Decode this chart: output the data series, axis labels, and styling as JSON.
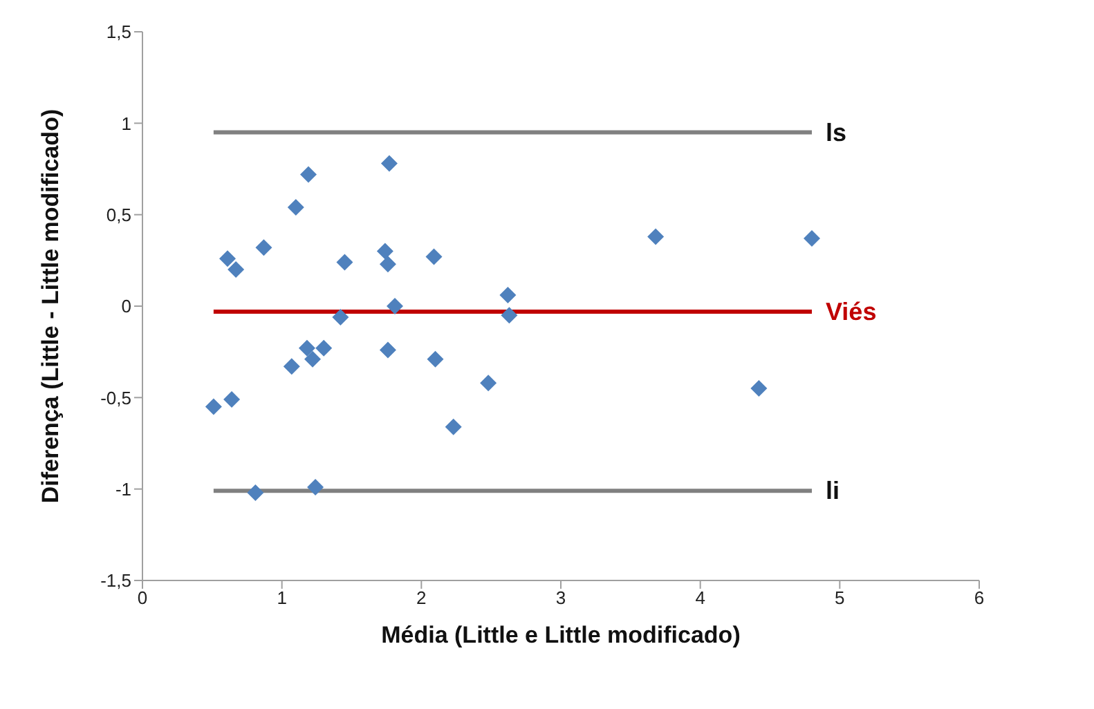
{
  "chart_data": {
    "type": "scatter",
    "xlabel": "Média (Little e Little modificado)",
    "ylabel": "Diferença (Little - Little modificado)",
    "x": [
      0.61,
      0.67,
      0.87,
      1.1,
      1.19,
      1.77,
      1.74,
      1.76,
      1.45,
      2.09,
      1.81,
      1.42,
      0.51,
      0.64,
      0.81,
      1.24,
      1.07,
      1.18,
      1.3,
      1.22,
      1.76,
      2.1,
      2.62,
      2.63,
      2.48,
      2.23,
      3.68,
      4.8,
      4.42
    ],
    "series": [
      {
        "color": "#4f81bd",
        "values": [
          0.26,
          0.2,
          0.32,
          0.54,
          0.72,
          0.78,
          0.3,
          0.23,
          0.24,
          0.27,
          0.0,
          -0.06,
          -0.55,
          -0.51,
          -1.02,
          -0.99,
          -0.33,
          -0.23,
          -0.23,
          -0.29,
          -0.24,
          -0.29,
          0.06,
          -0.05,
          -0.42,
          -0.66,
          0.38,
          0.37,
          -0.45
        ]
      }
    ],
    "marker": "diamond",
    "xlim": [
      0,
      6
    ],
    "xticks": [
      0,
      1,
      2,
      3,
      4,
      5,
      6
    ],
    "ylim": [
      -1.5,
      1.5
    ],
    "yticks": [
      {
        "value": -1.5,
        "label": "-1,5"
      },
      {
        "value": -1,
        "label": "-1"
      },
      {
        "value": -0.5,
        "label": "-0,5"
      },
      {
        "value": 0,
        "label": "0"
      },
      {
        "value": 0.5,
        "label": "0,5"
      },
      {
        "value": 1,
        "label": "1"
      },
      {
        "value": 1.5,
        "label": "1,5"
      }
    ],
    "ref_lines": [
      {
        "axis": "y",
        "value": 0.95,
        "label": "ls",
        "color": "#808080"
      },
      {
        "axis": "y",
        "value": -0.03,
        "label": "Viés",
        "color": "#c00000"
      },
      {
        "axis": "y",
        "value": -1.01,
        "label": "li",
        "color": "#808080"
      }
    ]
  }
}
